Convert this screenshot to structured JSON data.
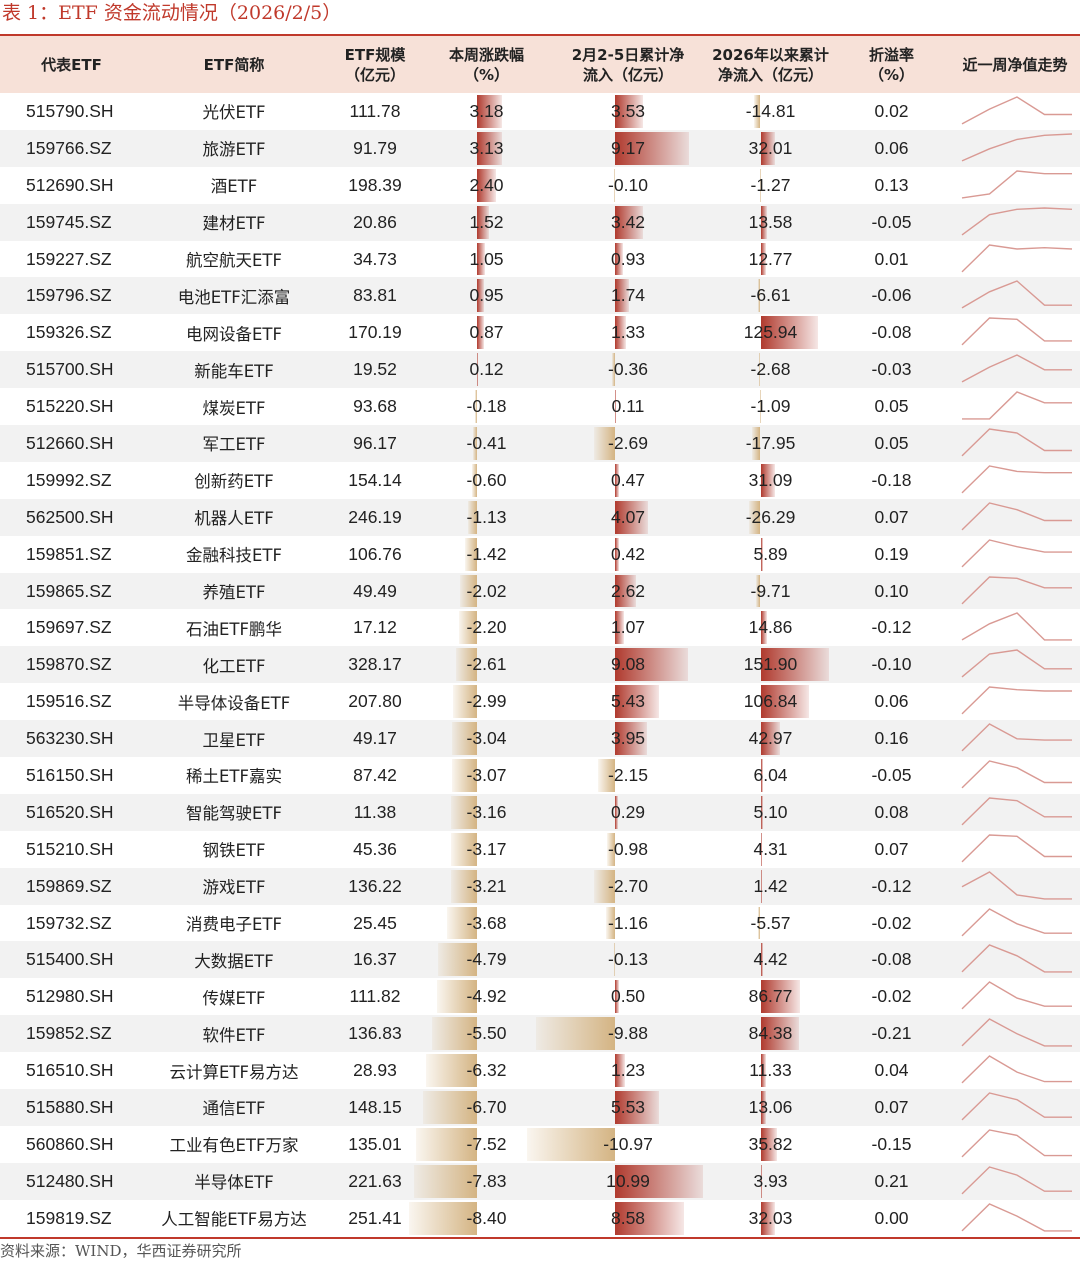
{
  "caption": "表 1：ETF 资金流动情况（2026/2/5）",
  "headers": {
    "code": "代表ETF",
    "name": "ETF简称",
    "size_l1": "ETF规模",
    "size_l2": "（亿元）",
    "chg_l1": "本周涨跌幅",
    "chg_l2": "（%）",
    "flow_l1": "2月2-5日累计净",
    "flow_l2": "流入（亿元）",
    "ytd_l1": "2026年以来累计",
    "ytd_l2": "净流入（亿元）",
    "prem_l1": "折溢率",
    "prem_l2": "（%）",
    "trend": "近一周净值走势"
  },
  "colors": {
    "header_bg": "#f7e1d8",
    "accent_red": "#c0392b",
    "positive_bar": "#b03a2e",
    "negative_bar": "#d4b483",
    "sparkline": "#d99a94"
  },
  "rows": [
    {
      "code": "515790.SH",
      "name": "光伏ETF",
      "size": "111.78",
      "chg": "3.18",
      "flow": "3.53",
      "ytd": "-14.81",
      "prem": "0.02",
      "trend": [
        0.0,
        0.55,
        1.0,
        0.35,
        0.35
      ]
    },
    {
      "code": "159766.SZ",
      "name": "旅游ETF",
      "size": "91.79",
      "chg": "3.13",
      "flow": "9.17",
      "ytd": "32.01",
      "prem": "0.06",
      "trend": [
        0.0,
        0.45,
        0.8,
        0.95,
        1.0
      ]
    },
    {
      "code": "512690.SH",
      "name": "酒ETF",
      "size": "198.39",
      "chg": "2.40",
      "flow": "-0.10",
      "ytd": "-1.27",
      "prem": "0.13",
      "trend": [
        0.0,
        0.15,
        1.0,
        0.9,
        0.9
      ]
    },
    {
      "code": "159745.SZ",
      "name": "建材ETF",
      "size": "20.86",
      "chg": "1.52",
      "flow": "3.42",
      "ytd": "13.58",
      "prem": "-0.05",
      "trend": [
        0.0,
        0.75,
        0.95,
        1.0,
        0.95
      ]
    },
    {
      "code": "159227.SZ",
      "name": "航空航天ETF",
      "size": "34.73",
      "chg": "1.05",
      "flow": "0.93",
      "ytd": "12.77",
      "prem": "0.01",
      "trend": [
        0.0,
        1.0,
        0.85,
        0.9,
        0.85
      ]
    },
    {
      "code": "159796.SZ",
      "name": "电池ETF汇添富",
      "size": "83.81",
      "chg": "0.95",
      "flow": "1.74",
      "ytd": "-6.61",
      "prem": "-0.06",
      "trend": [
        0.0,
        0.6,
        1.0,
        0.1,
        0.1
      ]
    },
    {
      "code": "159326.SZ",
      "name": "电网设备ETF",
      "size": "170.19",
      "chg": "0.87",
      "flow": "1.33",
      "ytd": "125.94",
      "prem": "-0.08",
      "trend": [
        0.0,
        1.0,
        0.95,
        0.15,
        0.15
      ]
    },
    {
      "code": "515700.SH",
      "name": "新能车ETF",
      "size": "19.52",
      "chg": "0.12",
      "flow": "-0.36",
      "ytd": "-2.68",
      "prem": "-0.03",
      "trend": [
        0.0,
        0.55,
        1.0,
        0.45,
        0.45
      ]
    },
    {
      "code": "515220.SH",
      "name": "煤炭ETF",
      "size": "93.68",
      "chg": "-0.18",
      "flow": "0.11",
      "ytd": "-1.09",
      "prem": "0.05",
      "trend": [
        0.0,
        0.0,
        1.0,
        0.6,
        0.6
      ]
    },
    {
      "code": "512660.SH",
      "name": "军工ETF",
      "size": "96.17",
      "chg": "-0.41",
      "flow": "-2.69",
      "ytd": "-17.95",
      "prem": "0.05",
      "trend": [
        0.0,
        1.0,
        0.85,
        0.2,
        0.2
      ]
    },
    {
      "code": "159992.SZ",
      "name": "创新药ETF",
      "size": "154.14",
      "chg": "-0.60",
      "flow": "0.47",
      "ytd": "31.09",
      "prem": "-0.18",
      "trend": [
        0.0,
        1.0,
        0.8,
        0.75,
        0.75
      ]
    },
    {
      "code": "562500.SH",
      "name": "机器人ETF",
      "size": "246.19",
      "chg": "-1.13",
      "flow": "4.07",
      "ytd": "-26.29",
      "prem": "0.07",
      "trend": [
        0.0,
        1.0,
        0.75,
        0.35,
        0.35
      ]
    },
    {
      "code": "159851.SZ",
      "name": "金融科技ETF",
      "size": "106.76",
      "chg": "-1.42",
      "flow": "0.42",
      "ytd": "5.89",
      "prem": "0.19",
      "trend": [
        0.0,
        1.0,
        0.75,
        0.55,
        0.55
      ]
    },
    {
      "code": "159865.SZ",
      "name": "养殖ETF",
      "size": "49.49",
      "chg": "-2.02",
      "flow": "2.62",
      "ytd": "-9.71",
      "prem": "0.10",
      "trend": [
        0.0,
        1.0,
        0.95,
        0.6,
        0.6
      ]
    },
    {
      "code": "159697.SZ",
      "name": "石油ETF鹏华",
      "size": "17.12",
      "chg": "-2.20",
      "flow": "1.07",
      "ytd": "14.86",
      "prem": "-0.12",
      "trend": [
        0.0,
        0.6,
        1.0,
        0.0,
        0.0
      ]
    },
    {
      "code": "159870.SZ",
      "name": "化工ETF",
      "size": "328.17",
      "chg": "-2.61",
      "flow": "9.08",
      "ytd": "151.90",
      "prem": "-0.10",
      "trend": [
        0.0,
        0.85,
        1.0,
        0.3,
        0.3
      ]
    },
    {
      "code": "159516.SZ",
      "name": "半导体设备ETF",
      "size": "207.80",
      "chg": "-2.99",
      "flow": "5.43",
      "ytd": "106.84",
      "prem": "0.06",
      "trend": [
        0.0,
        1.0,
        0.9,
        0.85,
        0.85
      ]
    },
    {
      "code": "563230.SH",
      "name": "卫星ETF",
      "size": "49.17",
      "chg": "-3.04",
      "flow": "3.95",
      "ytd": "42.97",
      "prem": "0.16",
      "trend": [
        0.0,
        1.0,
        0.45,
        0.4,
        0.4
      ]
    },
    {
      "code": "516150.SH",
      "name": "稀土ETF嘉实",
      "size": "87.42",
      "chg": "-3.07",
      "flow": "-2.15",
      "ytd": "6.04",
      "prem": "-0.05",
      "trend": [
        0.0,
        1.0,
        0.75,
        0.2,
        0.2
      ]
    },
    {
      "code": "516520.SH",
      "name": "智能驾驶ETF",
      "size": "11.38",
      "chg": "-3.16",
      "flow": "0.29",
      "ytd": "5.10",
      "prem": "0.08",
      "trend": [
        0.0,
        1.0,
        0.9,
        0.3,
        0.3
      ]
    },
    {
      "code": "515210.SH",
      "name": "钢铁ETF",
      "size": "45.36",
      "chg": "-3.17",
      "flow": "-0.98",
      "ytd": "4.31",
      "prem": "0.07",
      "trend": [
        0.0,
        1.0,
        0.95,
        0.2,
        0.2
      ]
    },
    {
      "code": "159869.SZ",
      "name": "游戏ETF",
      "size": "136.22",
      "chg": "-3.21",
      "flow": "-2.70",
      "ytd": "1.42",
      "prem": "-0.12",
      "trend": [
        0.45,
        1.0,
        0.15,
        0.0,
        0.0
      ]
    },
    {
      "code": "159732.SZ",
      "name": "消费电子ETF",
      "size": "25.45",
      "chg": "-3.68",
      "flow": "-1.16",
      "ytd": "-5.57",
      "prem": "-0.02",
      "trend": [
        0.0,
        1.0,
        0.45,
        0.1,
        0.1
      ]
    },
    {
      "code": "515400.SH",
      "name": "大数据ETF",
      "size": "16.37",
      "chg": "-4.79",
      "flow": "-0.13",
      "ytd": "4.42",
      "prem": "-0.08",
      "trend": [
        0.0,
        1.0,
        0.6,
        0.0,
        0.0
      ]
    },
    {
      "code": "512980.SH",
      "name": "传媒ETF",
      "size": "111.82",
      "chg": "-4.92",
      "flow": "0.50",
      "ytd": "86.77",
      "prem": "-0.02",
      "trend": [
        0.0,
        1.0,
        0.4,
        0.1,
        0.1
      ]
    },
    {
      "code": "159852.SZ",
      "name": "软件ETF",
      "size": "136.83",
      "chg": "-5.50",
      "flow": "-9.88",
      "ytd": "84.38",
      "prem": "-0.21",
      "trend": [
        0.0,
        1.0,
        0.45,
        0.0,
        0.0
      ]
    },
    {
      "code": "516510.SH",
      "name": "云计算ETF易方达",
      "size": "28.93",
      "chg": "-6.32",
      "flow": "1.23",
      "ytd": "11.33",
      "prem": "0.04",
      "trend": [
        0.0,
        1.0,
        0.4,
        0.05,
        0.05
      ]
    },
    {
      "code": "515880.SH",
      "name": "通信ETF",
      "size": "148.15",
      "chg": "-6.70",
      "flow": "5.53",
      "ytd": "13.06",
      "prem": "0.07",
      "trend": [
        0.0,
        1.0,
        0.75,
        0.1,
        0.1
      ]
    },
    {
      "code": "560860.SH",
      "name": "工业有色ETF万家",
      "size": "135.01",
      "chg": "-7.52",
      "flow": "-10.97",
      "ytd": "35.82",
      "prem": "-0.15",
      "trend": [
        0.0,
        1.0,
        0.8,
        0.05,
        0.05
      ]
    },
    {
      "code": "512480.SH",
      "name": "半导体ETF",
      "size": "221.63",
      "chg": "-7.83",
      "flow": "10.99",
      "ytd": "3.93",
      "prem": "0.21",
      "trend": [
        0.0,
        1.0,
        0.7,
        0.1,
        0.1
      ]
    },
    {
      "code": "159819.SZ",
      "name": "人工智能ETF易方达",
      "size": "251.41",
      "chg": "-8.40",
      "flow": "8.58",
      "ytd": "32.03",
      "prem": "0.00",
      "trend": [
        0.0,
        1.0,
        0.55,
        0.0,
        0.0
      ]
    }
  ],
  "source": "资料来源：WIND，华西证券研究所"
}
